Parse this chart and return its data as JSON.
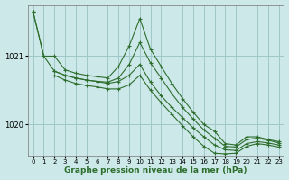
{
  "background_color": "#cce8e8",
  "plot_bg_color": "#cce8e8",
  "grid_color": "#a0c8c8",
  "line_color": "#2d6e2d",
  "xlabel": "Graphe pression niveau de la mer (hPa)",
  "xlabel_fontsize": 6.5,
  "ylim": [
    1019.55,
    1021.75
  ],
  "xlim": [
    -0.5,
    23.5
  ],
  "yticks": [
    1020,
    1021
  ],
  "xticks": [
    0,
    1,
    2,
    3,
    4,
    5,
    6,
    7,
    8,
    9,
    10,
    11,
    12,
    13,
    14,
    15,
    16,
    17,
    18,
    19,
    20,
    21,
    22,
    23
  ],
  "series": [
    {
      "x": [
        0,
        1,
        2,
        3,
        4,
        5,
        6,
        7,
        8,
        9,
        10,
        11,
        12,
        13,
        14,
        15,
        16,
        17,
        18,
        19,
        20,
        21,
        22,
        23
      ],
      "y": [
        1021.65,
        1021.0,
        1021.0,
        1020.8,
        1020.75,
        1020.72,
        1020.7,
        1020.68,
        1020.85,
        1021.15,
        1021.55,
        1021.1,
        1020.85,
        1020.6,
        1020.38,
        1020.18,
        1020.0,
        1019.9,
        1019.72,
        1019.7,
        1019.82,
        1019.82,
        1019.78,
        1019.75
      ]
    },
    {
      "x": [
        0,
        1,
        2,
        3,
        4,
        5,
        6,
        7,
        8,
        9,
        10,
        11,
        12,
        13,
        14,
        15,
        16,
        17,
        18,
        19,
        20,
        21,
        22,
        23
      ],
      "y": [
        1021.65,
        1021.0,
        1020.78,
        1020.72,
        1020.68,
        1020.65,
        1020.63,
        1020.62,
        1020.68,
        1020.88,
        1021.2,
        1020.9,
        1020.68,
        1020.45,
        1020.25,
        1020.08,
        1019.92,
        1019.8,
        1019.68,
        1019.67,
        1019.78,
        1019.8,
        1019.77,
        1019.73
      ]
    },
    {
      "x": [
        2,
        3,
        4,
        5,
        6,
        7,
        8,
        9,
        10,
        11,
        12,
        13,
        14,
        15,
        16,
        17,
        18,
        19,
        20,
        21,
        22,
        23
      ],
      "y": [
        1020.78,
        1020.72,
        1020.68,
        1020.65,
        1020.63,
        1020.6,
        1020.63,
        1020.72,
        1020.88,
        1020.62,
        1020.42,
        1020.25,
        1020.1,
        1019.95,
        1019.82,
        1019.7,
        1019.63,
        1019.62,
        1019.72,
        1019.75,
        1019.73,
        1019.7
      ]
    },
    {
      "x": [
        2,
        3,
        4,
        5,
        6,
        7,
        8,
        9,
        10,
        11,
        12,
        13,
        14,
        15,
        16,
        17,
        18,
        19,
        20,
        21,
        22,
        23
      ],
      "y": [
        1020.72,
        1020.65,
        1020.6,
        1020.57,
        1020.55,
        1020.52,
        1020.52,
        1020.58,
        1020.72,
        1020.5,
        1020.32,
        1020.15,
        1019.98,
        1019.82,
        1019.68,
        1019.58,
        1019.57,
        1019.58,
        1019.68,
        1019.72,
        1019.7,
        1019.67
      ]
    }
  ]
}
